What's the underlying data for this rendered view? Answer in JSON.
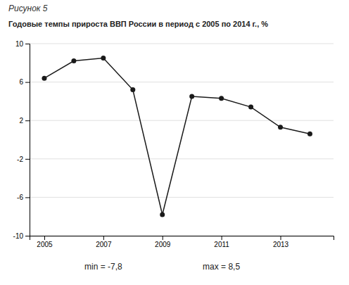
{
  "chart_data": {
    "type": "line",
    "subtitle": "Рисунок 5",
    "title": "Годовые темпы прироста ВВП России в период с 2005 по 2014 г., %",
    "x": [
      2005,
      2006,
      2007,
      2008,
      2009,
      2010,
      2011,
      2012,
      2013,
      2014
    ],
    "values": [
      6.4,
      8.2,
      8.5,
      5.2,
      -7.8,
      4.5,
      4.3,
      3.4,
      1.3,
      0.6
    ],
    "xlim": [
      2004.5,
      2014.8
    ],
    "xticks": [
      2005,
      2007,
      2009,
      2011,
      2013
    ],
    "ylim": [
      -10,
      10
    ],
    "yticks": [
      -10,
      -6,
      -2,
      2,
      6,
      10
    ],
    "grid": true,
    "color": "#1a1a1a",
    "marker": "circle",
    "annotations": [
      {
        "text": "min = -7,8",
        "x": 2007.0
      },
      {
        "text": "max = 8,5",
        "x": 2011.0
      }
    ]
  }
}
